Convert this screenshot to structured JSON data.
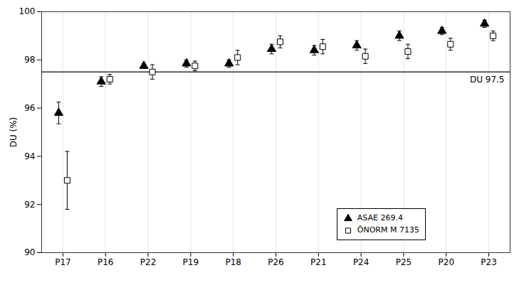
{
  "chart_data": {
    "type": "scatter",
    "categories": [
      "P17",
      "P16",
      "P22",
      "P19",
      "P18",
      "P26",
      "P21",
      "P24",
      "P25",
      "P20",
      "P23"
    ],
    "series": [
      {
        "name": "ASAE 269.4",
        "color": "#000000",
        "marker": "triangle",
        "values": [
          95.8,
          97.1,
          97.75,
          97.85,
          97.85,
          98.45,
          98.4,
          98.6,
          99.0,
          99.2,
          99.5
        ],
        "errors": [
          0.45,
          0.2,
          0.1,
          0.15,
          0.15,
          0.2,
          0.2,
          0.2,
          0.2,
          0.15,
          0.15
        ]
      },
      {
        "name": "ÖNORM M 7135",
        "color": "#000000",
        "marker": "square_open",
        "values": [
          93.0,
          97.2,
          97.5,
          97.75,
          98.1,
          98.75,
          98.55,
          98.15,
          98.35,
          98.65,
          99.0
        ],
        "errors": [
          1.2,
          0.2,
          0.3,
          0.2,
          0.3,
          0.25,
          0.3,
          0.3,
          0.3,
          0.25,
          0.2
        ]
      }
    ],
    "reference_line": {
      "y": 97.5,
      "label": "DU 97.5",
      "color": "#333333"
    },
    "ylabel": "DU (%)",
    "ylim": [
      90,
      100
    ],
    "yticks": [
      90,
      92,
      94,
      96,
      98,
      100
    ],
    "grid": "x",
    "legend": "lower right"
  }
}
